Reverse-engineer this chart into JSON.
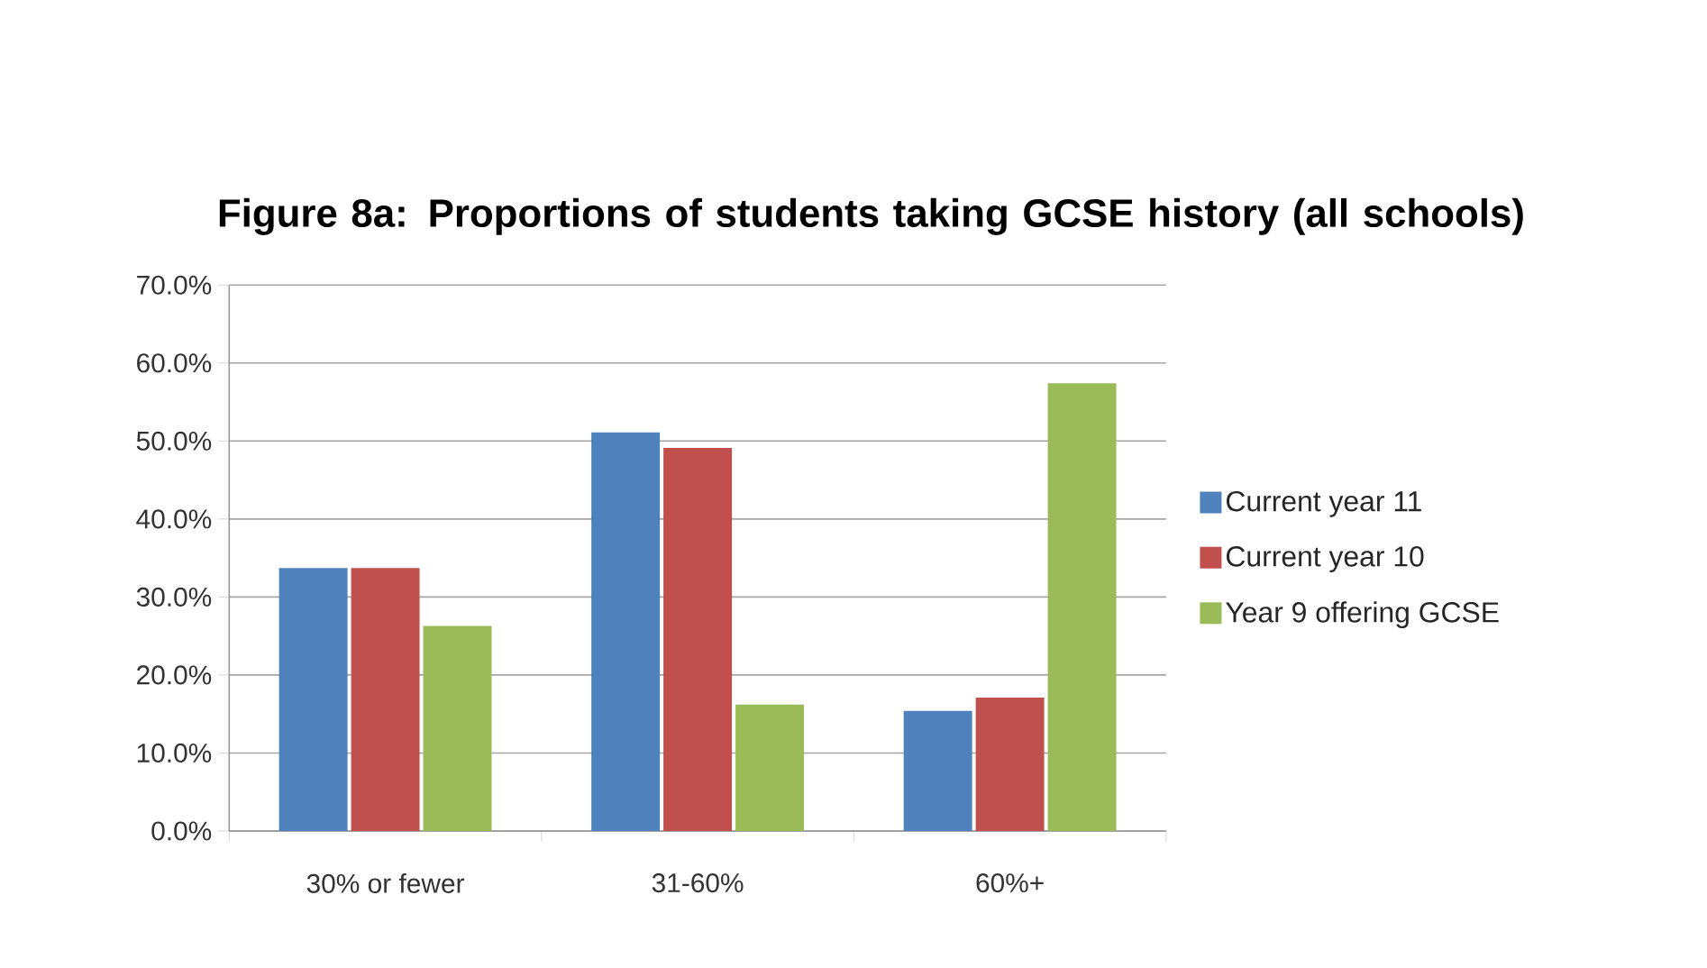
{
  "chart_data": {
    "type": "bar",
    "title": "Figure  8a: Proportions of students taking GCSE history (all schools)",
    "categories": [
      "30% or fewer",
      "31-60%",
      "60%+"
    ],
    "series": [
      {
        "name": "Current year 11",
        "color": "#4f81bd",
        "values": [
          33.7,
          51.1,
          15.4
        ]
      },
      {
        "name": "Current year 10",
        "color": "#c0504d",
        "values": [
          33.7,
          49.1,
          17.1
        ]
      },
      {
        "name": "Year 9 offering GCSE",
        "color": "#9bbb59",
        "values": [
          26.3,
          16.2,
          57.4
        ]
      }
    ],
    "ylim": [
      0,
      70
    ],
    "yticks": [
      {
        "value": 0,
        "label": "0.0%"
      },
      {
        "value": 10,
        "label": "10.0%"
      },
      {
        "value": 20,
        "label": "20.0%"
      },
      {
        "value": 30,
        "label": "30.0%"
      },
      {
        "value": 40,
        "label": "40.0%"
      },
      {
        "value": 50,
        "label": "50.0%"
      },
      {
        "value": 60,
        "label": "60.0%"
      },
      {
        "value": 70,
        "label": "70.0%"
      }
    ],
    "grid": "y",
    "legend": "right"
  }
}
